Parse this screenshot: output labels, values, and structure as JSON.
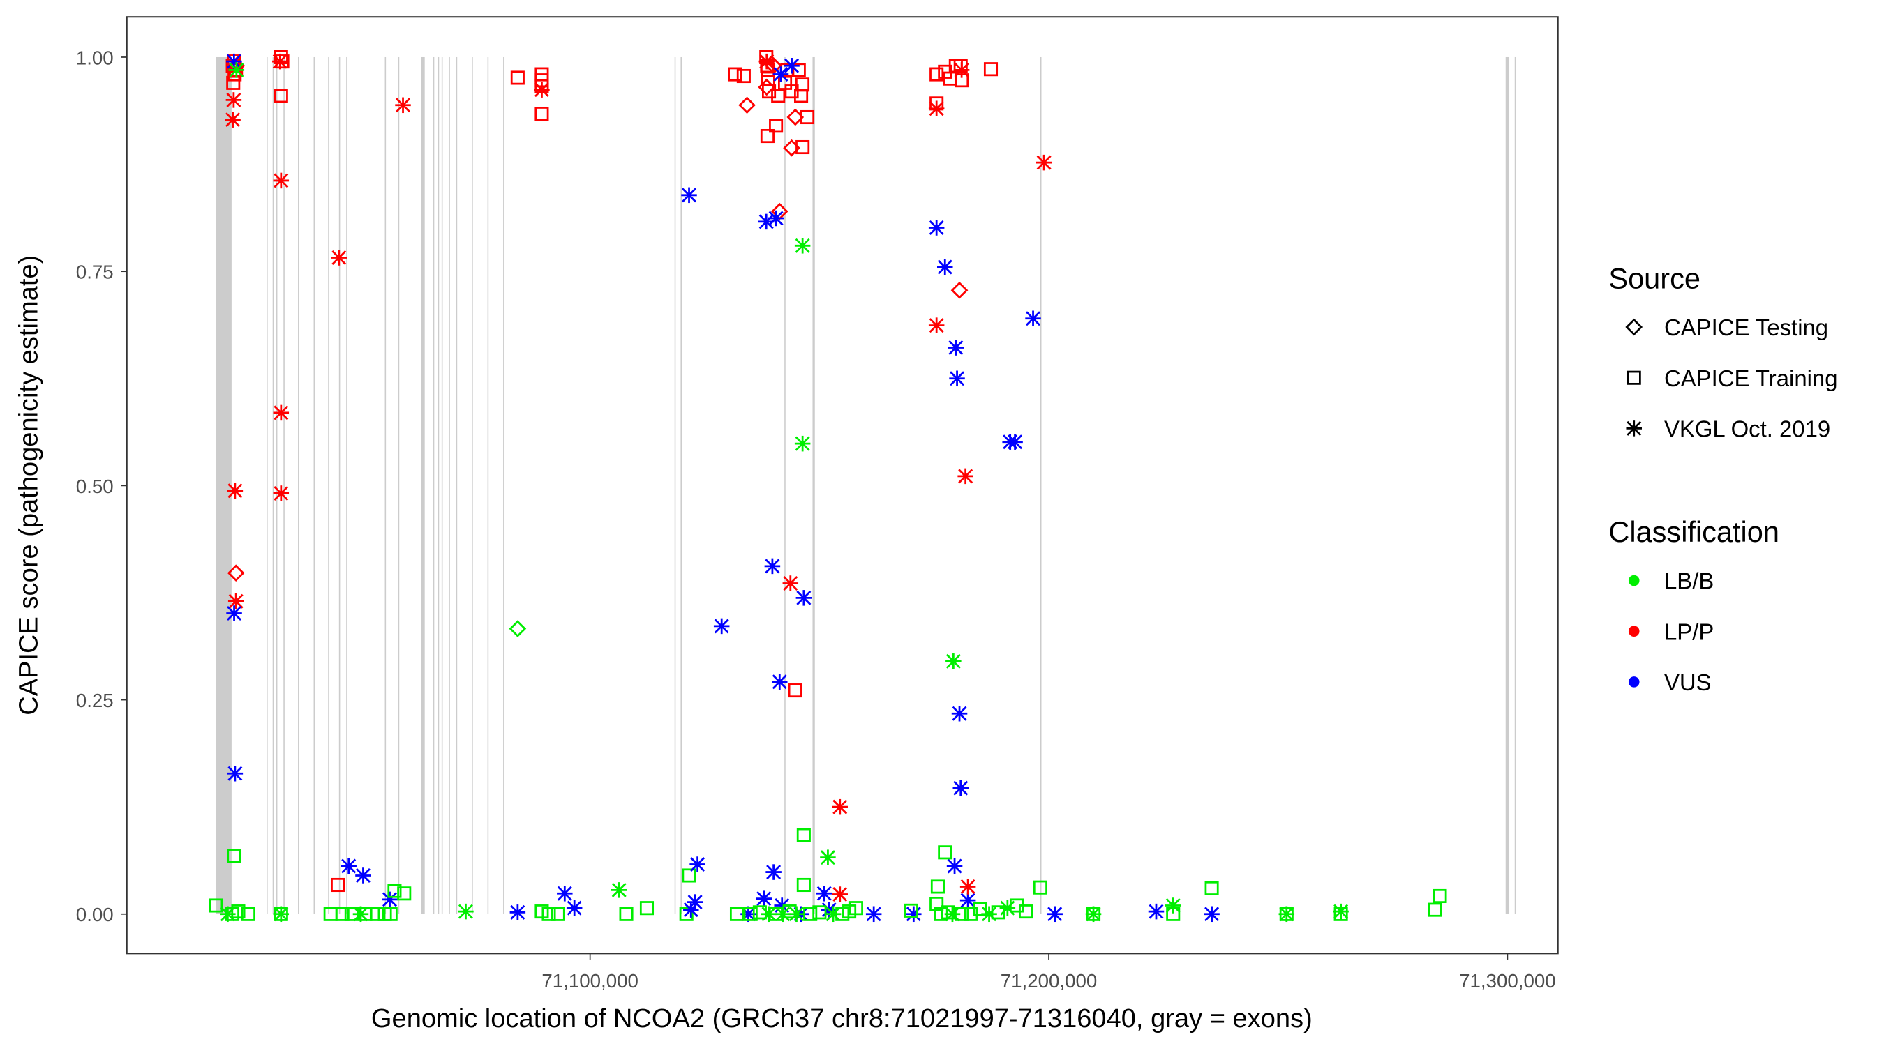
{
  "chart_data": {
    "type": "scatter",
    "xlabel": "Genomic location of NCOA2 (GRCh37 chr8:71021997-71316040, gray = exons)",
    "ylabel": "CAPICE score (pathogenicity estimate)",
    "x_ticks": [
      71100000,
      71200000,
      71300000
    ],
    "x_tick_labels": [
      "71,100,000",
      "71,200,000",
      "71,300,000"
    ],
    "y_ticks": [
      0,
      0.25,
      0.5,
      0.75,
      1
    ],
    "y_tick_labels": [
      "0.00",
      "0.25",
      "0.50",
      "0.75",
      "1.00"
    ],
    "xlim": [
      70999000,
      71311000
    ],
    "ylim": [
      -0.046,
      1.047
    ],
    "grid": false,
    "legend": {
      "placement": "right",
      "source_title": "Source",
      "sources": [
        {
          "code": "T",
          "label": "CAPICE Testing",
          "shape": "diamond"
        },
        {
          "code": "R",
          "label": "CAPICE Training",
          "shape": "square"
        },
        {
          "code": "V",
          "label": "VKGL Oct. 2019",
          "shape": "asterisk"
        }
      ],
      "class_title": "Classification",
      "classes": [
        {
          "code": "B",
          "label": "LB/B",
          "color": "#00ee00"
        },
        {
          "code": "P",
          "label": "LP/P",
          "color": "#ff0000"
        },
        {
          "code": "U",
          "label": "VUS",
          "color": "#0000ff"
        }
      ]
    },
    "exons": [
      [
        71018420,
        71021840
      ],
      [
        71029470,
        71029700
      ],
      [
        71030790,
        71031000
      ],
      [
        71031580,
        71031800
      ],
      [
        71033160,
        71033400
      ],
      [
        71036320,
        71036550
      ],
      [
        71039740,
        71039950
      ],
      [
        71042890,
        71043100
      ],
      [
        71045260,
        71045450
      ],
      [
        71046840,
        71047050
      ],
      [
        71055260,
        71055450
      ],
      [
        71058160,
        71058400
      ],
      [
        71063160,
        71063950
      ],
      [
        71065790,
        71066000
      ],
      [
        71066840,
        71067050
      ],
      [
        71067630,
        71067850
      ],
      [
        71069210,
        71069420
      ],
      [
        71070790,
        71071000
      ],
      [
        71074210,
        71074420
      ],
      [
        71077630,
        71077850
      ],
      [
        71081050,
        71081250
      ],
      [
        71118420,
        71118650
      ],
      [
        71119740,
        71120000
      ],
      [
        71142370,
        71142600
      ],
      [
        71148500,
        71149000
      ],
      [
        71198160,
        71198380
      ],
      [
        71299600,
        71300400
      ],
      [
        71301580,
        71301800
      ]
    ],
    "points_columns": [
      "position",
      "score",
      "source",
      "classification"
    ],
    "points": [
      [
        71022370,
        0.995,
        "R",
        "P"
      ],
      [
        71022100,
        0.99,
        "R",
        "P"
      ],
      [
        71022800,
        0.985,
        "R",
        "P"
      ],
      [
        71022500,
        0.98,
        "R",
        "P"
      ],
      [
        71022200,
        0.97,
        "R",
        "P"
      ],
      [
        71022900,
        0.99,
        "T",
        "P"
      ],
      [
        71022370,
        0.995,
        "V",
        "U"
      ],
      [
        71022300,
        0.95,
        "V",
        "P"
      ],
      [
        71022100,
        0.927,
        "V",
        "P"
      ],
      [
        71022900,
        0.985,
        "V",
        "B"
      ],
      [
        71022600,
        0.494,
        "V",
        "P"
      ],
      [
        71022800,
        0.398,
        "T",
        "P"
      ],
      [
        71022800,
        0.365,
        "V",
        "P"
      ],
      [
        71022400,
        0.351,
        "V",
        "U"
      ],
      [
        71022600,
        0.164,
        "V",
        "U"
      ],
      [
        71022370,
        0.068,
        "R",
        "B"
      ],
      [
        71018400,
        0.01,
        "R",
        "B"
      ],
      [
        71021000,
        0.0,
        "V",
        "B"
      ],
      [
        71022000,
        0.0,
        "R",
        "B"
      ],
      [
        71023300,
        0.003,
        "R",
        "B"
      ],
      [
        71025500,
        0.0,
        "R",
        "B"
      ],
      [
        71032630,
        1.0,
        "R",
        "P"
      ],
      [
        71032400,
        0.995,
        "V",
        "P"
      ],
      [
        71032900,
        0.995,
        "R",
        "P"
      ],
      [
        71032630,
        0.955,
        "R",
        "P"
      ],
      [
        71032630,
        0.856,
        "V",
        "P"
      ],
      [
        71032630,
        0.585,
        "V",
        "P"
      ],
      [
        71032630,
        0.491,
        "V",
        "P"
      ],
      [
        71032630,
        0.0,
        "R",
        "B"
      ],
      [
        71032630,
        0.0,
        "V",
        "B"
      ],
      [
        71045260,
        0.766,
        "V",
        "P"
      ],
      [
        71045000,
        0.034,
        "R",
        "P"
      ],
      [
        71059210,
        0.944,
        "V",
        "P"
      ],
      [
        71047370,
        0.056,
        "V",
        "U"
      ],
      [
        71050530,
        0.045,
        "V",
        "U"
      ],
      [
        71056320,
        0.017,
        "V",
        "U"
      ],
      [
        71043420,
        0.0,
        "R",
        "B"
      ],
      [
        71046000,
        0.0,
        "R",
        "B"
      ],
      [
        71048000,
        0.0,
        "R",
        "B"
      ],
      [
        71050000,
        0.0,
        "V",
        "B"
      ],
      [
        71051000,
        0.0,
        "R",
        "B"
      ],
      [
        71053500,
        0.0,
        "R",
        "B"
      ],
      [
        71055260,
        0.0,
        "R",
        "B"
      ],
      [
        71056500,
        0.0,
        "R",
        "B"
      ],
      [
        71057370,
        0.027,
        "R",
        "B"
      ],
      [
        71059470,
        0.024,
        "R",
        "B"
      ],
      [
        71072890,
        0.003,
        "V",
        "B"
      ],
      [
        71084210,
        0.976,
        "R",
        "P"
      ],
      [
        71084210,
        0.333,
        "T",
        "B"
      ],
      [
        71084210,
        0.002,
        "V",
        "U"
      ],
      [
        71089470,
        0.98,
        "R",
        "P"
      ],
      [
        71089470,
        0.973,
        "R",
        "P"
      ],
      [
        71089470,
        0.966,
        "R",
        "P"
      ],
      [
        71089470,
        0.962,
        "V",
        "P"
      ],
      [
        71089470,
        0.934,
        "R",
        "P"
      ],
      [
        71089470,
        0.003,
        "R",
        "B"
      ],
      [
        71091000,
        0.0,
        "R",
        "B"
      ],
      [
        71093000,
        0.0,
        "R",
        "B"
      ],
      [
        71094470,
        0.024,
        "V",
        "U"
      ],
      [
        71096580,
        0.007,
        "V",
        "U"
      ],
      [
        71106320,
        0.028,
        "V",
        "B"
      ],
      [
        71107890,
        0.0,
        "R",
        "B"
      ],
      [
        71112370,
        0.007,
        "R",
        "B"
      ],
      [
        71121580,
        0.839,
        "V",
        "U"
      ],
      [
        71121580,
        0.045,
        "R",
        "B"
      ],
      [
        71123420,
        0.058,
        "V",
        "U"
      ],
      [
        71122890,
        0.014,
        "V",
        "U"
      ],
      [
        71121000,
        0.0,
        "R",
        "B"
      ],
      [
        71122000,
        0.005,
        "V",
        "U"
      ],
      [
        71128680,
        0.336,
        "V",
        "U"
      ],
      [
        71131580,
        0.98,
        "R",
        "P"
      ],
      [
        71133500,
        0.978,
        "R",
        "P"
      ],
      [
        71134210,
        0.944,
        "T",
        "P"
      ],
      [
        71138680,
        0.908,
        "R",
        "P"
      ],
      [
        71140530,
        0.92,
        "R",
        "P"
      ],
      [
        71138420,
        1.0,
        "R",
        "P"
      ],
      [
        71138500,
        0.995,
        "V",
        "P"
      ],
      [
        71138600,
        0.99,
        "R",
        "P"
      ],
      [
        71138700,
        0.985,
        "R",
        "P"
      ],
      [
        71138800,
        0.975,
        "R",
        "P"
      ],
      [
        71138500,
        0.965,
        "T",
        "P"
      ],
      [
        71139000,
        0.96,
        "R",
        "P"
      ],
      [
        71140000,
        0.99,
        "T",
        "P"
      ],
      [
        71141000,
        0.955,
        "R",
        "P"
      ],
      [
        71142500,
        0.97,
        "R",
        "P"
      ],
      [
        71143000,
        0.985,
        "R",
        "P"
      ],
      [
        71145500,
        0.985,
        "R",
        "P"
      ],
      [
        71146300,
        0.968,
        "R",
        "P"
      ],
      [
        71146000,
        0.955,
        "R",
        "P"
      ],
      [
        71143950,
        0.96,
        "R",
        "P"
      ],
      [
        71141320,
        0.82,
        "T",
        "P"
      ],
      [
        71143950,
        0.894,
        "T",
        "P"
      ],
      [
        71144740,
        0.93,
        "T",
        "P"
      ],
      [
        71146320,
        0.895,
        "R",
        "P"
      ],
      [
        71147370,
        0.93,
        "R",
        "P"
      ],
      [
        71144740,
        0.261,
        "R",
        "P"
      ],
      [
        71143680,
        0.386,
        "V",
        "P"
      ],
      [
        71138420,
        0.808,
        "V",
        "U"
      ],
      [
        71140530,
        0.812,
        "V",
        "U"
      ],
      [
        71141580,
        0.98,
        "V",
        "U"
      ],
      [
        71143950,
        0.99,
        "V",
        "U"
      ],
      [
        71139740,
        0.406,
        "V",
        "U"
      ],
      [
        71141320,
        0.271,
        "V",
        "U"
      ],
      [
        71146580,
        0.369,
        "V",
        "U"
      ],
      [
        71140000,
        0.049,
        "V",
        "U"
      ],
      [
        71137890,
        0.018,
        "V",
        "U"
      ],
      [
        71141840,
        0.01,
        "V",
        "U"
      ],
      [
        71151050,
        0.024,
        "V",
        "U"
      ],
      [
        71152110,
        0.005,
        "V",
        "U"
      ],
      [
        71134500,
        0.0,
        "V",
        "U"
      ],
      [
        71146000,
        0.0,
        "V",
        "U"
      ],
      [
        71146320,
        0.78,
        "V",
        "B"
      ],
      [
        71146320,
        0.549,
        "V",
        "B"
      ],
      [
        71151840,
        0.066,
        "V",
        "B"
      ],
      [
        71146580,
        0.092,
        "R",
        "B"
      ],
      [
        71146580,
        0.034,
        "R",
        "B"
      ],
      [
        71154470,
        0.125,
        "V",
        "P"
      ],
      [
        71154470,
        0.023,
        "V",
        "P"
      ],
      [
        71132000,
        0.0,
        "R",
        "B"
      ],
      [
        71135000,
        0.0,
        "R",
        "B"
      ],
      [
        71137000,
        0.002,
        "R",
        "B"
      ],
      [
        71139000,
        0.0,
        "V",
        "B"
      ],
      [
        71140500,
        0.0,
        "R",
        "B"
      ],
      [
        71142000,
        0.0,
        "V",
        "B"
      ],
      [
        71143500,
        0.003,
        "R",
        "B"
      ],
      [
        71145000,
        0.0,
        "V",
        "B"
      ],
      [
        71148000,
        0.0,
        "R",
        "B"
      ],
      [
        71150000,
        0.002,
        "R",
        "B"
      ],
      [
        71153000,
        0.0,
        "V",
        "B"
      ],
      [
        71155000,
        0.0,
        "R",
        "B"
      ],
      [
        71156500,
        0.003,
        "R",
        "B"
      ],
      [
        71158000,
        0.007,
        "R",
        "B"
      ],
      [
        71161840,
        0.0,
        "V",
        "U"
      ],
      [
        71170530,
        0.0,
        "V",
        "U"
      ],
      [
        71170000,
        0.004,
        "R",
        "B"
      ],
      [
        71175530,
        0.98,
        "R",
        "P"
      ],
      [
        71177370,
        0.983,
        "R",
        "P"
      ],
      [
        71178500,
        0.975,
        "R",
        "P"
      ],
      [
        71179740,
        0.99,
        "R",
        "P"
      ],
      [
        71180790,
        0.99,
        "R",
        "P"
      ],
      [
        71181000,
        0.985,
        "V",
        "P"
      ],
      [
        71181000,
        0.973,
        "R",
        "P"
      ],
      [
        71187370,
        0.986,
        "R",
        "P"
      ],
      [
        71175530,
        0.946,
        "R",
        "P"
      ],
      [
        71175530,
        0.94,
        "V",
        "P"
      ],
      [
        71175530,
        0.801,
        "V",
        "U"
      ],
      [
        71177370,
        0.755,
        "V",
        "U"
      ],
      [
        71179740,
        0.661,
        "V",
        "U"
      ],
      [
        71180000,
        0.625,
        "V",
        "U"
      ],
      [
        71180530,
        0.234,
        "V",
        "U"
      ],
      [
        71180790,
        0.147,
        "V",
        "U"
      ],
      [
        71179470,
        0.056,
        "V",
        "U"
      ],
      [
        71182370,
        0.016,
        "V",
        "U"
      ],
      [
        71175530,
        0.687,
        "V",
        "P"
      ],
      [
        71181840,
        0.511,
        "V",
        "P"
      ],
      [
        71182370,
        0.032,
        "V",
        "P"
      ],
      [
        71180530,
        0.728,
        "T",
        "P"
      ],
      [
        71179210,
        0.295,
        "V",
        "B"
      ],
      [
        71177370,
        0.072,
        "R",
        "B"
      ],
      [
        71175800,
        0.032,
        "R",
        "B"
      ],
      [
        71175530,
        0.012,
        "R",
        "B"
      ],
      [
        71176500,
        0.0,
        "R",
        "B"
      ],
      [
        71178000,
        0.002,
        "R",
        "B"
      ],
      [
        71179000,
        0.0,
        "V",
        "B"
      ],
      [
        71181000,
        0.0,
        "R",
        "B"
      ],
      [
        71183000,
        0.0,
        "R",
        "B"
      ],
      [
        71185000,
        0.006,
        "R",
        "B"
      ],
      [
        71187000,
        0.0,
        "V",
        "B"
      ],
      [
        71189000,
        0.002,
        "R",
        "B"
      ],
      [
        71191000,
        0.007,
        "V",
        "B"
      ],
      [
        71193000,
        0.01,
        "R",
        "B"
      ],
      [
        71195000,
        0.003,
        "R",
        "B"
      ],
      [
        71196580,
        0.695,
        "V",
        "U"
      ],
      [
        71191580,
        0.551,
        "V",
        "U"
      ],
      [
        71192630,
        0.551,
        "V",
        "U"
      ],
      [
        71198950,
        0.877,
        "V",
        "P"
      ],
      [
        71198160,
        0.031,
        "R",
        "B"
      ],
      [
        71201320,
        0.0,
        "V",
        "U"
      ],
      [
        71209740,
        0.0,
        "R",
        "B"
      ],
      [
        71209740,
        0.0,
        "V",
        "B"
      ],
      [
        71223420,
        0.003,
        "V",
        "U"
      ],
      [
        71227110,
        0.01,
        "V",
        "B"
      ],
      [
        71227110,
        0.0,
        "R",
        "B"
      ],
      [
        71235530,
        0.03,
        "R",
        "B"
      ],
      [
        71235530,
        0.0,
        "V",
        "U"
      ],
      [
        71251840,
        0.0,
        "R",
        "B"
      ],
      [
        71251840,
        0.0,
        "V",
        "B"
      ],
      [
        71263680,
        0.003,
        "V",
        "B"
      ],
      [
        71263680,
        0.0,
        "R",
        "B"
      ],
      [
        71285260,
        0.021,
        "R",
        "B"
      ],
      [
        71284210,
        0.005,
        "R",
        "B"
      ]
    ]
  }
}
